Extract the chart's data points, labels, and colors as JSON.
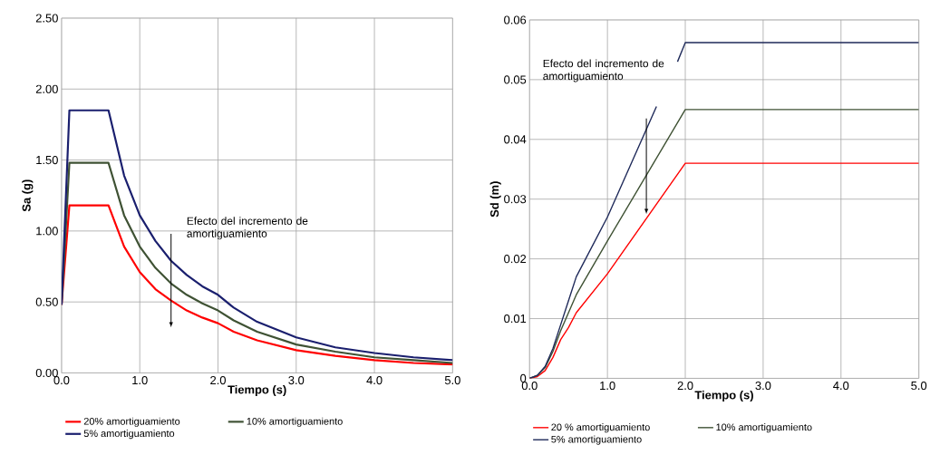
{
  "chart_data": [
    {
      "type": "line",
      "xlabel": "Tiempo (s)",
      "ylabel": "Sa (g)",
      "xlim": [
        0,
        5
      ],
      "ylim": [
        0,
        2.5
      ],
      "xticks": [
        {
          "value": 0,
          "label": "0.0"
        },
        {
          "value": 1,
          "label": "1.0"
        },
        {
          "value": 2,
          "label": "2.0"
        },
        {
          "value": 3,
          "label": "3.0"
        },
        {
          "value": 4,
          "label": "4.0"
        },
        {
          "value": 5,
          "label": "5.0"
        }
      ],
      "yticks": [
        {
          "value": 0,
          "label": "0.00"
        },
        {
          "value": 0.5,
          "label": "0.50"
        },
        {
          "value": 1,
          "label": "1.00"
        },
        {
          "value": 1.5,
          "label": "1.50"
        },
        {
          "value": 2,
          "label": "2.00"
        },
        {
          "value": 2.5,
          "label": "2.50"
        }
      ],
      "grid": true,
      "legend": "bottom",
      "annotations": [
        "Efecto del incremento de amortiguamiento"
      ],
      "x": [
        0,
        0.1,
        0.6,
        0.8,
        1.0,
        1.2,
        1.4,
        1.6,
        1.8,
        2.0,
        2.2,
        2.5,
        3.0,
        3.5,
        4.0,
        4.5,
        5.0
      ],
      "series": [
        {
          "name": "20% amortiguamiento",
          "color": "#ff0000",
          "values": [
            0.48,
            1.18,
            1.18,
            0.89,
            0.71,
            0.59,
            0.51,
            0.44,
            0.39,
            0.35,
            0.29,
            0.23,
            0.16,
            0.12,
            0.09,
            0.07,
            0.06
          ]
        },
        {
          "name": "10% amortiguamiento",
          "color": "#3f5234",
          "values": [
            0.48,
            1.48,
            1.48,
            1.11,
            0.89,
            0.74,
            0.63,
            0.55,
            0.49,
            0.44,
            0.37,
            0.29,
            0.2,
            0.15,
            0.11,
            0.09,
            0.07
          ]
        },
        {
          "name": "5% amortiguamiento",
          "color": "#1a1f6e",
          "values": [
            0.48,
            1.85,
            1.85,
            1.39,
            1.11,
            0.93,
            0.79,
            0.69,
            0.61,
            0.55,
            0.46,
            0.36,
            0.25,
            0.18,
            0.14,
            0.11,
            0.09
          ]
        }
      ]
    },
    {
      "type": "line",
      "xlabel": "Tiempo (s)",
      "ylabel": "Sd (m)",
      "xlim": [
        0,
        5
      ],
      "ylim": [
        0,
        0.06
      ],
      "xticks": [
        {
          "value": 0,
          "label": "0.0"
        },
        {
          "value": 1,
          "label": "1.0"
        },
        {
          "value": 2,
          "label": "2.0"
        },
        {
          "value": 3,
          "label": "3.0"
        },
        {
          "value": 4,
          "label": "4.0"
        },
        {
          "value": 5,
          "label": "5.0"
        }
      ],
      "yticks": [
        0,
        0.01,
        0.02,
        0.03,
        0.04,
        0.05,
        0.06
      ],
      "grid": true,
      "legend": "bottom",
      "annotations": [
        "Efecto del incremento de amortiguamiento"
      ],
      "series": [
        {
          "name": "20 % amortiguamiento",
          "color": "#ff0000",
          "x": [
            0,
            0.1,
            0.2,
            0.3,
            0.4,
            0.5,
            0.6,
            1.0,
            2.0,
            5.0
          ],
          "values": [
            0,
            0.0003,
            0.0013,
            0.0035,
            0.0065,
            0.0085,
            0.011,
            0.0175,
            0.036,
            0.036
          ]
        },
        {
          "name": "10% amortiguamiento",
          "color": "#3f5234",
          "x": [
            0,
            0.1,
            0.2,
            0.3,
            0.4,
            0.5,
            0.6,
            1.0,
            2.0,
            5.0
          ],
          "values": [
            0,
            0.0005,
            0.0018,
            0.0045,
            0.008,
            0.011,
            0.014,
            0.023,
            0.045,
            0.045
          ]
        },
        {
          "name": "5% amortiguamiento",
          "color": "#1f2a5a",
          "x": [
            0,
            0.1,
            0.2,
            0.3,
            0.4,
            0.5,
            0.6,
            1.0,
            1.63,
            1.75,
            1.9,
            2.0,
            2.4,
            5.0
          ],
          "values": [
            0,
            0.0005,
            0.002,
            0.005,
            0.009,
            0.013,
            0.017,
            0.027,
            0.0455,
            null,
            0.053,
            0.0562,
            0.0562,
            0.0562
          ]
        }
      ]
    }
  ]
}
